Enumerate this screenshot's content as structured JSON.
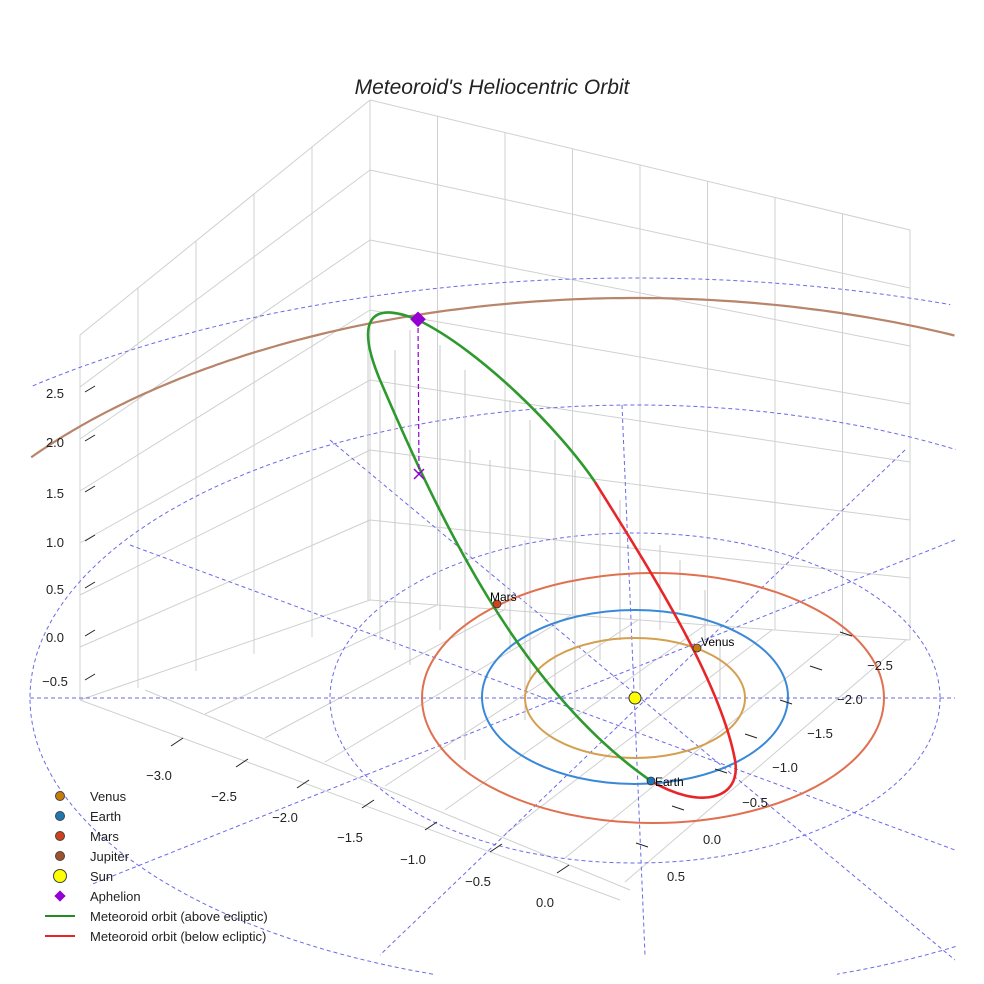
{
  "chart_data": {
    "type": "line3d",
    "title": "Meteoroid's Heliocentric Orbit",
    "x_ticks": [
      "−3.0",
      "−2.5",
      "−2.0",
      "−1.5",
      "−1.0",
      "−0.5",
      "0.0"
    ],
    "y_ticks": [
      "−2.5",
      "−2.0",
      "−1.5",
      "−1.0",
      "−0.5",
      "0.0",
      "0.5"
    ],
    "z_ticks": [
      "−0.5",
      "0.0",
      "0.5",
      "1.0",
      "1.5",
      "2.0",
      "2.5"
    ],
    "bodies": [
      {
        "name": "Venus",
        "label": "Venus",
        "color": "#c87a0a",
        "orbit_color": "#d4a050",
        "orbit_au": 0.72
      },
      {
        "name": "Earth",
        "label": "Earth",
        "color": "#1f77b4",
        "orbit_color": "#3a88d8",
        "orbit_au": 1.0
      },
      {
        "name": "Mars",
        "label": "Mars",
        "color": "#d2401a",
        "orbit_color": "#e07050",
        "orbit_au": 1.52
      },
      {
        "name": "Jupiter",
        "color": "#a0522d",
        "orbit_color": "#b8846a",
        "orbit_au": 5.2
      }
    ],
    "aphelion_z": 2.5,
    "legend": [
      {
        "label": "Venus",
        "kind": "dot",
        "color": "#c87a0a"
      },
      {
        "label": "Earth",
        "kind": "dot",
        "color": "#1f77b4"
      },
      {
        "label": "Mars",
        "kind": "dot",
        "color": "#d2401a"
      },
      {
        "label": "Jupiter",
        "kind": "dot",
        "color": "#a0522d"
      },
      {
        "label": "Sun",
        "kind": "sun",
        "color": "#ffff00"
      },
      {
        "label": "Aphelion",
        "kind": "diamond",
        "color": "#9400d3"
      },
      {
        "label": "Meteoroid orbit (above ecliptic)",
        "kind": "line",
        "color": "#228b22"
      },
      {
        "label": "Meteoroid orbit (below ecliptic)",
        "kind": "line",
        "color": "#e8262a"
      }
    ],
    "legend_position": "lower-left"
  }
}
